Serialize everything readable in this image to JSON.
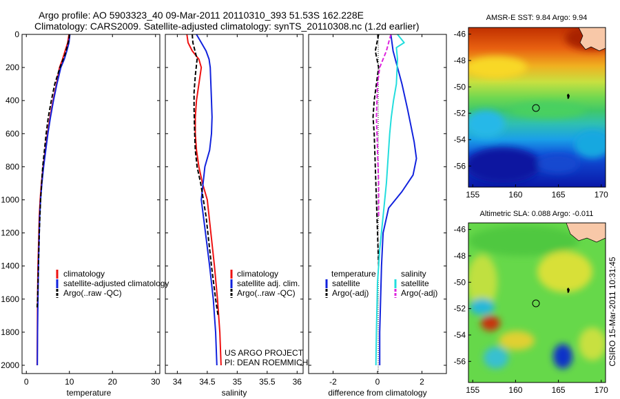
{
  "header": {
    "line1": "Argo profile: AO 5903323_40 09-Mar-2011 20110310_393 51.53S 162.228E",
    "line2": "Climatology: CARS2009. Satellite-adjusted climatology: synTS_20110308.nc (1.2d earlier)"
  },
  "depth_ticks": [
    "0",
    "200",
    "400",
    "600",
    "800",
    "1000",
    "1200",
    "1400",
    "1600",
    "1800",
    "2000"
  ],
  "credit": "CSIRO 15-Mar-2011 10:31:45",
  "project": {
    "line1": "US ARGO PROJECT",
    "line2": "PI: DEAN ROEMMICH"
  },
  "legends": {
    "temperature": [
      "climatology",
      "satellite-adjusted climatology",
      "Argo(..raw -QC)"
    ],
    "salinity": [
      "climatology",
      "satellite adj. clim.",
      "Argo(..raw -QC)"
    ],
    "difference": {
      "temp_title": "temperature",
      "sal_title": "salinity",
      "items": [
        "satellite",
        "Argo(-adj)",
        "satellite",
        "Argo(-adj)"
      ]
    }
  },
  "maps": {
    "sst": {
      "title": "AMSR-E SST: 9.84 Argo: 9.94",
      "xticks": [
        "155",
        "160",
        "165",
        "170"
      ],
      "yticks": [
        "-46",
        "-48",
        "-50",
        "-52",
        "-54",
        "-56"
      ],
      "xlim": [
        154.5,
        170.5
      ],
      "ylim": [
        -57.6,
        -45.5
      ],
      "float_position": [
        162.2,
        -51.5
      ]
    },
    "sla": {
      "title": "Altimetric SLA: 0.088 Argo: -0.011",
      "xticks": [
        "155",
        "160",
        "165",
        "170"
      ],
      "yticks": [
        "-46",
        "-48",
        "-50",
        "-52",
        "-54",
        "-56"
      ],
      "xlim": [
        154.5,
        170.5
      ],
      "ylim": [
        -57.6,
        -45.5
      ],
      "float_position": [
        162.2,
        -51.5
      ]
    }
  },
  "chart_data": [
    {
      "type": "line",
      "xlabel": "temperature",
      "ylabel": "",
      "xlim": [
        -1,
        31
      ],
      "ylim": [
        2050,
        0
      ],
      "xticks": [
        0,
        10,
        20,
        30
      ],
      "series": [
        {
          "name": "climatology",
          "color": "#ee1111",
          "dash": "solid",
          "x": [
            9.9,
            9.6,
            9.0,
            8.4,
            7.7,
            7.0,
            6.2,
            5.5,
            4.9,
            4.4,
            3.9,
            3.5,
            3.2,
            3.0,
            2.9,
            2.8,
            2.7,
            2.6,
            2.55,
            2.5
          ],
          "y": [
            0,
            50,
            100,
            150,
            200,
            300,
            400,
            500,
            600,
            700,
            800,
            900,
            1000,
            1100,
            1200,
            1300,
            1400,
            1600,
            1800,
            2000
          ]
        },
        {
          "name": "satellite-adjusted climatology",
          "color": "#1122dd",
          "dash": "solid",
          "x": [
            10.1,
            9.9,
            9.4,
            8.8,
            8.0,
            7.1,
            6.3,
            5.6,
            5.0,
            4.5,
            4.0,
            3.6,
            3.3,
            3.1,
            3.0,
            2.9,
            2.8,
            2.7,
            2.6,
            2.55
          ],
          "y": [
            0,
            50,
            100,
            150,
            200,
            300,
            400,
            500,
            600,
            700,
            800,
            900,
            1000,
            1100,
            1200,
            1300,
            1400,
            1600,
            1800,
            2000
          ]
        },
        {
          "name": "Argo(..raw -QC)",
          "color": "#000000",
          "dash": "dashed",
          "x": [
            10.0,
            9.9,
            9.6,
            9.0,
            7.8,
            6.6,
            5.8,
            5.1,
            4.6,
            4.2,
            3.8,
            3.3,
            3.0,
            2.8,
            2.6,
            2.5
          ],
          "y": [
            0,
            30,
            60,
            120,
            200,
            300,
            400,
            500,
            600,
            700,
            800,
            1000,
            1200,
            1400,
            1600,
            1650
          ]
        }
      ]
    },
    {
      "type": "line",
      "xlabel": "salinity",
      "ylabel": "",
      "xlim": [
        33.8,
        36.1
      ],
      "ylim": [
        2050,
        0
      ],
      "xticks": [
        34,
        34.5,
        35,
        35.5,
        36
      ],
      "series": [
        {
          "name": "climatology",
          "color": "#ee1111",
          "dash": "solid",
          "x": [
            34.16,
            34.18,
            34.25,
            34.36,
            34.4,
            34.36,
            34.32,
            34.3,
            34.3,
            34.32,
            34.36,
            34.42,
            34.5,
            34.56,
            34.62,
            34.67,
            34.71,
            34.73
          ],
          "y": [
            0,
            50,
            100,
            150,
            200,
            300,
            400,
            500,
            600,
            700,
            800,
            900,
            1000,
            1200,
            1400,
            1600,
            1800,
            2000
          ]
        },
        {
          "name": "satellite adj. clim.",
          "color": "#1122dd",
          "dash": "solid",
          "x": [
            34.32,
            34.4,
            34.48,
            34.53,
            34.55,
            34.56,
            34.57,
            34.58,
            34.57,
            34.54,
            34.46,
            34.4,
            34.47,
            34.54,
            34.6,
            34.64,
            34.66
          ],
          "y": [
            0,
            50,
            100,
            150,
            200,
            300,
            400,
            500,
            600,
            700,
            800,
            1000,
            1200,
            1400,
            1600,
            1800,
            2000
          ]
        },
        {
          "name": "Argo(..raw -QC)",
          "color": "#000000",
          "dash": "dashed",
          "x": [
            34.25,
            34.26,
            34.33,
            34.3,
            34.28,
            34.28,
            34.29,
            34.3,
            34.33,
            34.39,
            34.48,
            34.57,
            34.64,
            34.68
          ],
          "y": [
            0,
            50,
            150,
            250,
            350,
            450,
            600,
            700,
            800,
            900,
            1100,
            1400,
            1600,
            1700
          ]
        }
      ]
    },
    {
      "type": "line",
      "xlabel": "difference from climatology",
      "ylabel": "",
      "xlim": [
        -3.1,
        3.1
      ],
      "ylim": [
        2050,
        0
      ],
      "xticks": [
        -2,
        0,
        2
      ],
      "zero_line": "dotted",
      "series": [
        {
          "name": "temperature satellite",
          "color": "#1122dd",
          "dash": "solid",
          "x": [
            0.6,
            0.7,
            1.1,
            1.35,
            1.5,
            1.65,
            1.75,
            1.6,
            1.1,
            0.5,
            0.25,
            0.18,
            0.14,
            0.1,
            0.1
          ],
          "y": [
            0,
            100,
            300,
            450,
            550,
            650,
            750,
            850,
            950,
            1050,
            1200,
            1400,
            1600,
            1800,
            2000
          ]
        },
        {
          "name": "temperature Argo(-adj)",
          "color": "#000000",
          "dash": "dashed",
          "x": [
            0.05,
            -0.1,
            0.05,
            -0.05,
            -0.15,
            -0.2,
            -0.15,
            -0.1,
            -0.05,
            0.0,
            0.05
          ],
          "y": [
            0,
            100,
            200,
            300,
            400,
            500,
            600,
            800,
            1000,
            1200,
            1400
          ]
        },
        {
          "name": "salinity satellite",
          "color": "#22dddd",
          "dash": "solid",
          "x": [
            0.9,
            1.2,
            0.85,
            0.9,
            0.85,
            0.72,
            0.62,
            0.55,
            0.5,
            0.4,
            0.25,
            0.1,
            0.0,
            -0.05,
            -0.07
          ],
          "y": [
            0,
            50,
            80,
            150,
            300,
            400,
            500,
            600,
            700,
            900,
            1100,
            1300,
            1500,
            1800,
            2000
          ]
        },
        {
          "name": "salinity Argo(-adj)",
          "color": "#dd22dd",
          "dash": "dashed",
          "x": [
            0.6,
            0.5,
            0.4,
            0.1,
            0.0,
            -0.05,
            0.0,
            0.05,
            0.05
          ],
          "y": [
            0,
            50,
            100,
            200,
            300,
            500,
            700,
            900,
            1100
          ]
        }
      ]
    },
    {
      "type": "heatmap",
      "title": "AMSR-E SST: 9.84 Argo: 9.94",
      "x_range": [
        154.5,
        170.5
      ],
      "y_range": [
        -57.6,
        -45.5
      ]
    },
    {
      "type": "heatmap",
      "title": "Altimetric SLA: 0.088 Argo: -0.011",
      "x_range": [
        154.5,
        170.5
      ],
      "y_range": [
        -57.6,
        -45.5
      ]
    }
  ]
}
